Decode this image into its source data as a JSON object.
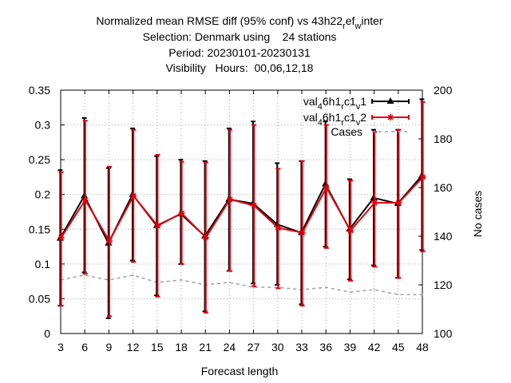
{
  "chart_data": {
    "type": "line",
    "title": [
      "Normalized mean RMSE diff (95% conf) vs 43h22_ref_winter",
      "Selection: Denmark using    24 stations",
      "Period: 20230101-20230131",
      "Visibility   Hours:  00,06,12,18"
    ],
    "xlabel": "Forecast length",
    "ylabel": "",
    "y2label": "No cases",
    "x": [
      3,
      6,
      9,
      12,
      15,
      18,
      21,
      24,
      27,
      30,
      33,
      36,
      39,
      42,
      45,
      48
    ],
    "xlim": [
      3,
      48
    ],
    "ylim": [
      0,
      0.35
    ],
    "y2lim": [
      100,
      200
    ],
    "yticks": [
      "0",
      "0.05",
      "0.1",
      "0.15",
      "0.2",
      "0.25",
      "0.3",
      "0.35"
    ],
    "y2ticks": [
      "100",
      "120",
      "140",
      "160",
      "180",
      "200"
    ],
    "grid": true,
    "legend": "top-right",
    "series": [
      {
        "name": "val_46h1_rc1_v1",
        "color": "#000000",
        "marker": "triangle",
        "values": [
          0.137,
          0.198,
          0.13,
          0.2,
          0.155,
          0.172,
          0.14,
          0.193,
          0.187,
          0.157,
          0.145,
          0.215,
          0.15,
          0.195,
          0.187,
          0.227
        ],
        "lower": [
          0.04,
          0.088,
          0.022,
          0.105,
          0.055,
          0.1,
          0.032,
          0.09,
          0.072,
          0.07,
          0.042,
          0.125,
          0.078,
          0.098,
          0.08,
          0.12
        ],
        "upper": [
          0.235,
          0.31,
          0.238,
          0.295,
          0.255,
          0.25,
          0.248,
          0.295,
          0.305,
          0.245,
          0.248,
          0.305,
          0.222,
          0.293,
          0.293,
          0.337
        ]
      },
      {
        "name": "val_46h1_rc1_v2",
        "color": "#e0000f",
        "marker": "star",
        "values": [
          0.138,
          0.192,
          0.133,
          0.198,
          0.155,
          0.173,
          0.138,
          0.193,
          0.184,
          0.152,
          0.145,
          0.21,
          0.148,
          0.188,
          0.188,
          0.225
        ],
        "lower": [
          0.04,
          0.086,
          0.025,
          0.103,
          0.053,
          0.1,
          0.03,
          0.09,
          0.068,
          0.065,
          0.04,
          0.123,
          0.076,
          0.096,
          0.08,
          0.118
        ],
        "upper": [
          0.232,
          0.306,
          0.24,
          0.293,
          0.257,
          0.247,
          0.246,
          0.293,
          0.3,
          0.237,
          0.248,
          0.3,
          0.22,
          0.29,
          0.293,
          0.333
        ]
      },
      {
        "name": "Cases",
        "color": "#a0a0a0",
        "axis": "y2",
        "dashed": true,
        "values": [
          122,
          124,
          122,
          124,
          121,
          122,
          120,
          121,
          119,
          119,
          118,
          119,
          117,
          118,
          116,
          116
        ]
      }
    ]
  }
}
